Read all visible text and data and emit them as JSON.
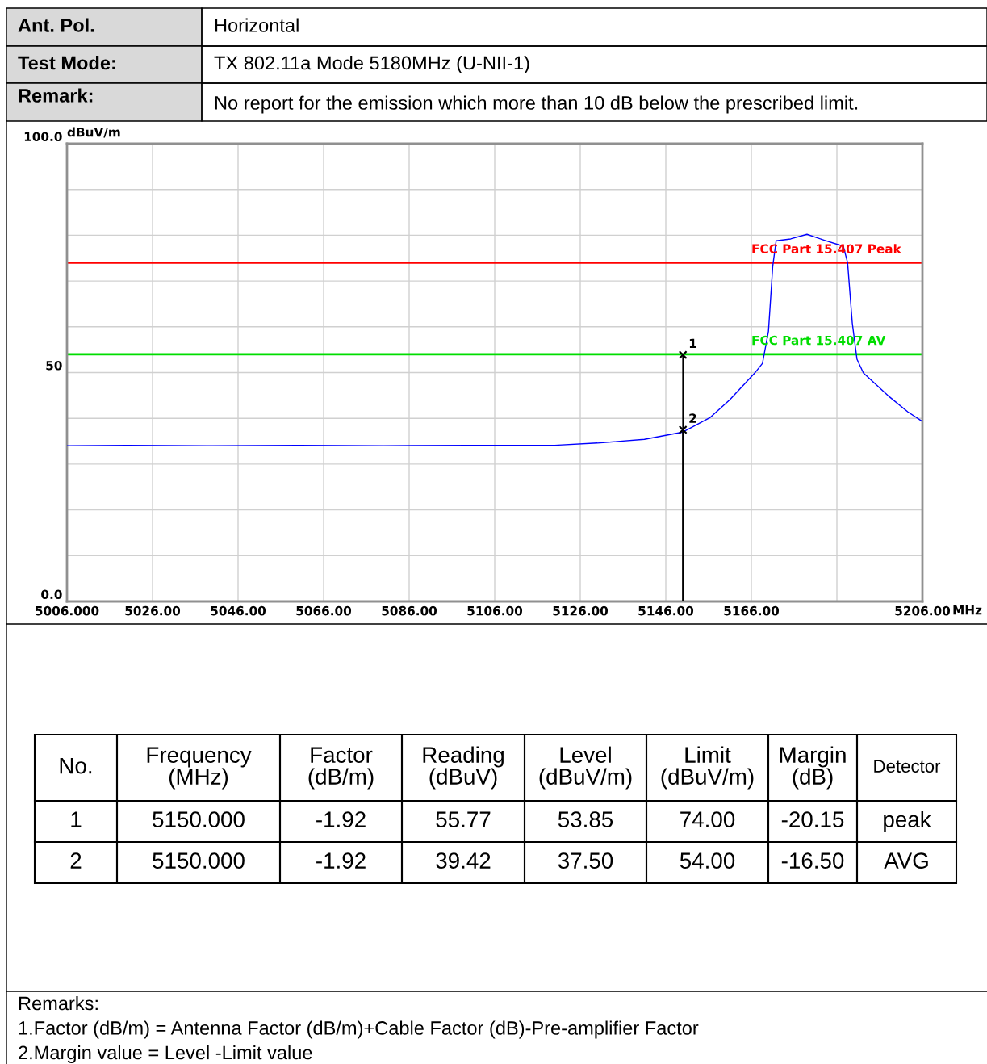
{
  "chart_data": {
    "type": "line",
    "ylabel": "dBuV/m",
    "xlabel": "MHz",
    "x": [
      5006,
      5020,
      5040,
      5060,
      5080,
      5100,
      5120,
      5130,
      5141,
      5150,
      5156.4,
      5161,
      5166.8,
      5168.6,
      5170,
      5171,
      5171.8,
      5175.2,
      5179,
      5182.8,
      5187.5,
      5188.5,
      5189.6,
      5190.7,
      5192.2,
      5197.9,
      5202.6,
      5206
    ],
    "series": [
      {
        "color": "#0000ff",
        "values": [
          34.0,
          34.1,
          34.0,
          34.1,
          34.0,
          34.1,
          34.1,
          34.6,
          35.4,
          37.0,
          40.2,
          44.1,
          49.9,
          52.0,
          59.0,
          73.2,
          78.8,
          79.2,
          80.2,
          79.0,
          77.6,
          74.0,
          60.8,
          52.9,
          49.9,
          45.0,
          41.4,
          39.3
        ]
      },
      {
        "type": "scatter",
        "color": "#000000",
        "marker": "cross",
        "x": [
          5150,
          5150
        ],
        "values": [
          53.85,
          37.5
        ]
      }
    ],
    "xlim": [
      5006,
      5206
    ],
    "xticks": [
      {
        "value": 5006,
        "label": "5006.000"
      },
      {
        "value": 5026,
        "label": "5026.00"
      },
      {
        "value": 5046,
        "label": "5046.00"
      },
      {
        "value": 5066,
        "label": "5066.00"
      },
      {
        "value": 5086,
        "label": "5086.00"
      },
      {
        "value": 5106,
        "label": "5106.00"
      },
      {
        "value": 5126,
        "label": "5126.00"
      },
      {
        "value": 5146,
        "label": "5146.00"
      },
      {
        "value": 5166,
        "label": "5166.00"
      },
      {
        "value": 5186,
        "label": null
      },
      {
        "value": 5206,
        "label": "5206.00"
      }
    ],
    "ylim": [
      0,
      100
    ],
    "yticks": [
      {
        "value": 0,
        "label": "0.0"
      },
      {
        "value": 10,
        "label": null
      },
      {
        "value": 20,
        "label": null
      },
      {
        "value": 30,
        "label": null
      },
      {
        "value": 40,
        "label": null
      },
      {
        "value": 50,
        "label": "50"
      },
      {
        "value": 60,
        "label": null
      },
      {
        "value": 70,
        "label": null
      },
      {
        "value": 80,
        "label": null
      },
      {
        "value": 90,
        "label": null
      },
      {
        "value": 100,
        "label": "100.0"
      }
    ],
    "grid": true,
    "ref_lines": [
      {
        "axis": "y",
        "value": 74,
        "label": "FCC Part 15.407 Peak",
        "color": "#ff0000"
      },
      {
        "axis": "y",
        "value": 54,
        "label": "FCC Part 15.407 AV",
        "color": "#00dd00"
      }
    ],
    "annotations": [
      "Ant. Pol.",
      "Horizontal",
      "Test Mode:",
      "TX 802.11a Mode 5180MHz (U-NII-1)",
      "Remark:",
      "No report for the emission which more than 10 dB below the prescribed limit.",
      "No.",
      "Frequency\n(MHz)",
      "Factor\n(dB/m)",
      "Reading\n(dBuV)",
      "Level\n(dBuV/m)",
      "Limit\n(dBuV/m)",
      "Margin\n(dB)",
      "Detector",
      "1",
      "5150.000",
      "-1.92",
      "55.77",
      "53.85",
      "74.00",
      "-20.15",
      "peak",
      "2",
      "5150.000",
      "-1.92",
      "39.42",
      "37.50",
      "54.00",
      "-16.50",
      "AVG",
      "Remarks:",
      "1.Factor (dB/m) = Antenna Factor (dB/m)+Cable Factor (dB)-Pre-amplifier Factor",
      "2.Margin value = Level -Limit value",
      {
        "text": "1",
        "x": 5150,
        "y": 53.85
      },
      {
        "text": "2",
        "x": 5150,
        "y": 37.5
      }
    ]
  }
}
